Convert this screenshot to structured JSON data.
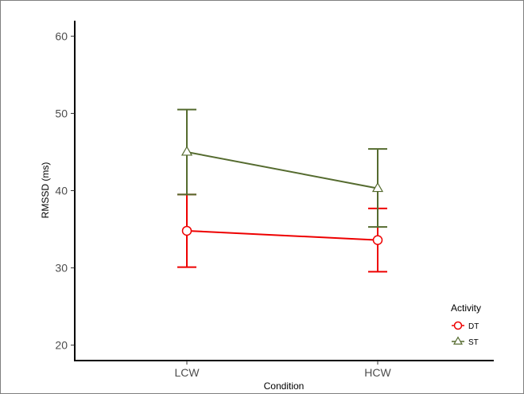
{
  "chart_data": {
    "type": "line",
    "x": [
      "LCW",
      "HCW"
    ],
    "xlabel": "Condition",
    "ylabel": "RMSSD (ms)",
    "ylim": [
      18,
      62
    ],
    "yticks": [
      20,
      30,
      40,
      50,
      60
    ],
    "grid": false,
    "legend": {
      "title": "Activity",
      "placement": "bottom-right"
    },
    "series": [
      {
        "name": "DT",
        "color": "#ee0000",
        "marker": "circle",
        "values": [
          34.8,
          33.6
        ],
        "error_low": [
          30.1,
          29.5
        ],
        "error_high": [
          39.5,
          37.7
        ]
      },
      {
        "name": "ST",
        "color": "#556b2f",
        "marker": "triangle",
        "values": [
          45.0,
          40.3
        ],
        "error_low": [
          39.5,
          35.3
        ],
        "error_high": [
          50.5,
          45.4
        ]
      }
    ]
  }
}
